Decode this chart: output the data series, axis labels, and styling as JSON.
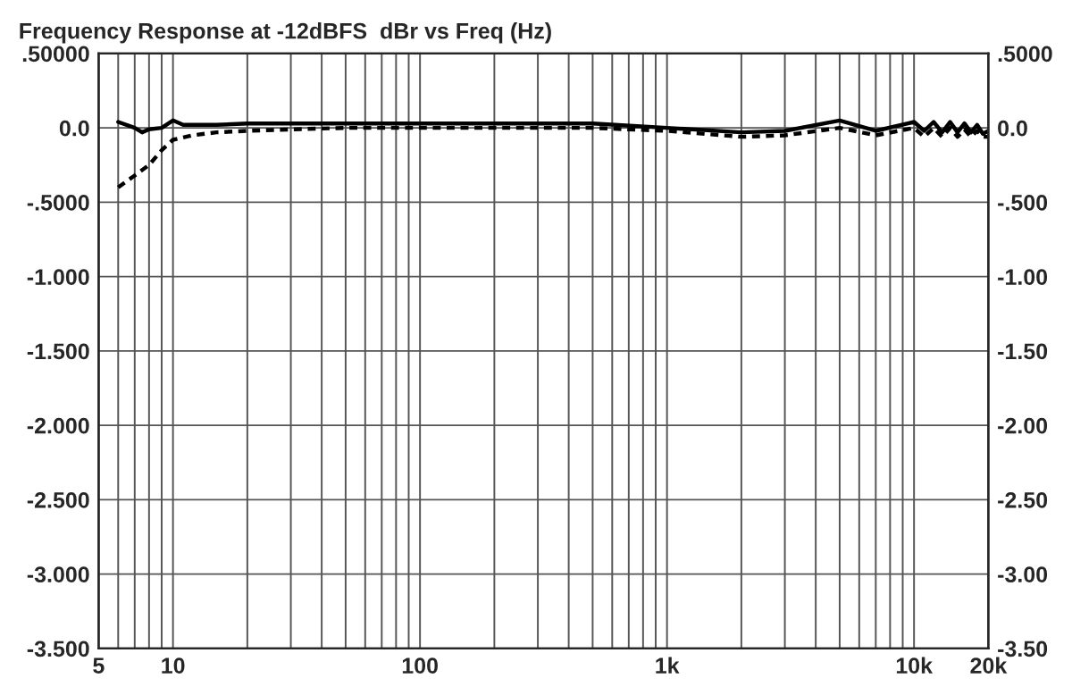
{
  "chart_data": {
    "type": "line",
    "title": "Frequency Response at -12dBFS  dBr vs Freq (Hz)",
    "log": "x",
    "grid": true,
    "xlim": [
      5,
      20000
    ],
    "ylim": [
      -3.5,
      0.5
    ],
    "xticks": [
      5,
      {
        "value": 6,
        "label": null
      },
      {
        "value": 7,
        "label": null
      },
      {
        "value": 8,
        "label": null
      },
      {
        "value": 9,
        "label": null
      },
      10,
      {
        "value": 20,
        "label": null
      },
      {
        "value": 30,
        "label": null
      },
      {
        "value": 40,
        "label": null
      },
      {
        "value": 50,
        "label": null
      },
      {
        "value": 60,
        "label": null
      },
      {
        "value": 70,
        "label": null
      },
      {
        "value": 80,
        "label": null
      },
      {
        "value": 90,
        "label": null
      },
      100,
      {
        "value": 200,
        "label": null
      },
      {
        "value": 300,
        "label": null
      },
      {
        "value": 400,
        "label": null
      },
      {
        "value": 500,
        "label": null
      },
      {
        "value": 600,
        "label": null
      },
      {
        "value": 700,
        "label": null
      },
      {
        "value": 800,
        "label": null
      },
      {
        "value": 900,
        "label": null
      },
      {
        "value": 1000,
        "label": "1k"
      },
      {
        "value": 2000,
        "label": null
      },
      {
        "value": 3000,
        "label": null
      },
      {
        "value": 4000,
        "label": null
      },
      {
        "value": 5000,
        "label": null
      },
      {
        "value": 6000,
        "label": null
      },
      {
        "value": 7000,
        "label": null
      },
      {
        "value": 8000,
        "label": null
      },
      {
        "value": 9000,
        "label": null
      },
      {
        "value": 10000,
        "label": "10k"
      },
      {
        "value": 20000,
        "label": "20k"
      }
    ],
    "yticks": [
      {
        "value": 0.5,
        "label": ".50000"
      },
      {
        "value": 0,
        "label": "0.0"
      },
      {
        "value": -0.5,
        "label": "-.5000"
      },
      {
        "value": -1,
        "label": "-1.000"
      },
      {
        "value": -1.5,
        "label": "-1.500"
      },
      {
        "value": -2,
        "label": "-2.000"
      },
      {
        "value": -2.5,
        "label": "-2.500"
      },
      {
        "value": -3,
        "label": "-3.000"
      },
      {
        "value": -3.5,
        "label": "-3.500"
      }
    ],
    "y2lim": [
      -3.5,
      0.5
    ],
    "y2ticks": [
      {
        "value": 0.5,
        "label": ".5000"
      },
      {
        "value": 0,
        "label": "0.0"
      },
      {
        "value": -0.5,
        "label": "-.500"
      },
      {
        "value": -1,
        "label": "-1.00"
      },
      {
        "value": -1.5,
        "label": "-1.50"
      },
      {
        "value": -2,
        "label": "-2.00"
      },
      {
        "value": -2.5,
        "label": "-2.50"
      },
      {
        "value": -3,
        "label": "-3.00"
      },
      {
        "value": -3.5,
        "label": "-3.50"
      }
    ],
    "series": [
      {
        "color": "#000000",
        "line_style": "solid",
        "x": [
          6,
          7,
          7.5,
          8,
          9,
          10,
          11,
          15,
          20,
          50,
          100,
          200,
          500,
          1000,
          2000,
          3000,
          5000,
          7000,
          10000,
          11000,
          12000,
          13000,
          14000,
          15000,
          16000,
          17000,
          18000,
          19000,
          20000
        ],
        "values": [
          0.04,
          0.0,
          -0.03,
          -0.01,
          0.0,
          0.05,
          0.02,
          0.02,
          0.03,
          0.03,
          0.03,
          0.03,
          0.03,
          0.0,
          -0.03,
          -0.02,
          0.05,
          -0.02,
          0.04,
          -0.02,
          0.04,
          -0.03,
          0.04,
          -0.03,
          0.03,
          -0.03,
          0.02,
          -0.04,
          -0.02
        ]
      },
      {
        "color": "#000000",
        "line_style": "dashed",
        "x": [
          6,
          7,
          8,
          9,
          10,
          12,
          15,
          20,
          30,
          50,
          100,
          200,
          500,
          1000,
          2000,
          3000,
          5000,
          7000,
          10000,
          11000,
          12000,
          13000,
          14000,
          15000,
          16000,
          17000,
          18000,
          19000,
          20000
        ],
        "values": [
          -0.4,
          -0.32,
          -0.25,
          -0.15,
          -0.08,
          -0.05,
          -0.03,
          -0.02,
          -0.01,
          0.0,
          0.0,
          0.0,
          0.0,
          -0.02,
          -0.06,
          -0.05,
          0.0,
          -0.05,
          0.0,
          -0.06,
          0.0,
          -0.06,
          0.0,
          -0.06,
          -0.01,
          -0.06,
          -0.02,
          -0.06,
          -0.06
        ]
      }
    ]
  }
}
